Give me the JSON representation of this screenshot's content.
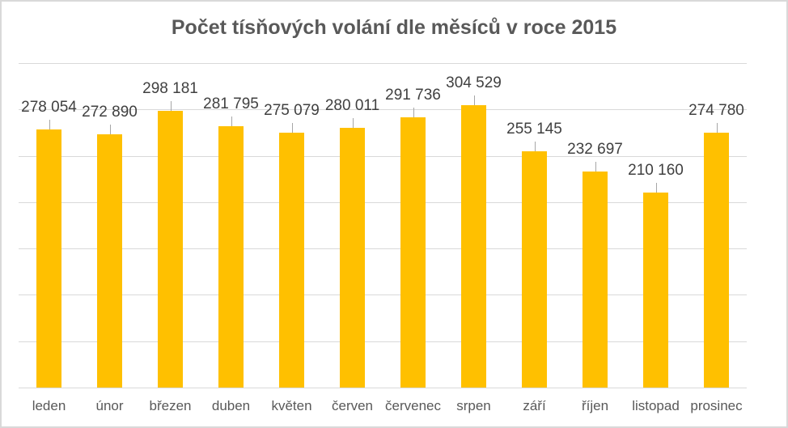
{
  "chart_data": {
    "type": "bar",
    "title": "Počet tísňových volání dle měsíců v roce 2015",
    "xlabel": "",
    "ylabel": "",
    "categories": [
      "leden",
      "únor",
      "březen",
      "duben",
      "květen",
      "červen",
      "červenec",
      "srpen",
      "září",
      "říjen",
      "listopad",
      "prosinec"
    ],
    "values": [
      278054,
      272890,
      298181,
      281795,
      275079,
      280011,
      291736,
      304529,
      255145,
      232697,
      210160,
      274780
    ],
    "value_labels": [
      "278 054",
      "272 890",
      "298 181",
      "281 795",
      "275 079",
      "280 011",
      "291 736",
      "304 529",
      "255 145",
      "232 697",
      "210 160",
      "274 780"
    ],
    "ylim": [
      0,
      350000
    ],
    "grid": true,
    "gridline_step": 50000,
    "y_axis_visible": false,
    "legend": "none",
    "bar_color": "#ffc000"
  }
}
